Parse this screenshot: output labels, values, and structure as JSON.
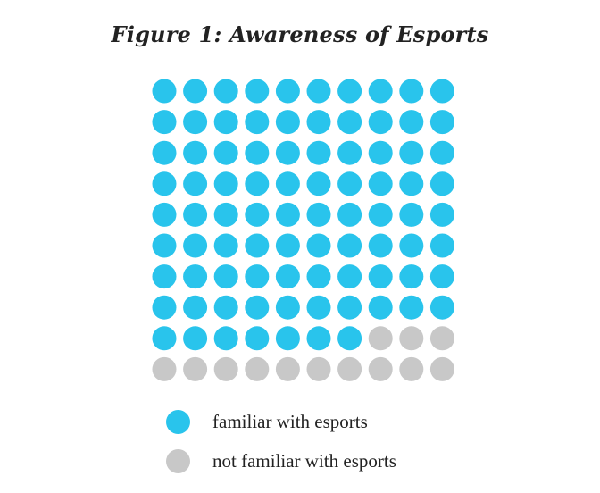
{
  "title": "Figure 1: Awareness of Esports",
  "colors": {
    "familiar": "#29c4ec",
    "not_familiar": "#c8c8c8"
  },
  "chart_data": {
    "type": "waffle",
    "title": "Figure 1: Awareness of Esports",
    "rows": 10,
    "columns": 10,
    "total": 100,
    "series": [
      {
        "name": "familiar with esports",
        "value": 87,
        "color": "#29c4ec"
      },
      {
        "name": "not familiar with esports",
        "value": 13,
        "color": "#c8c8c8"
      }
    ],
    "fill_order": "row-major from top-left",
    "legend_position": "bottom-left"
  },
  "legend": [
    {
      "label": "familiar with esports",
      "color": "#29c4ec"
    },
    {
      "label": "not familiar with esports",
      "color": "#c8c8c8"
    }
  ]
}
